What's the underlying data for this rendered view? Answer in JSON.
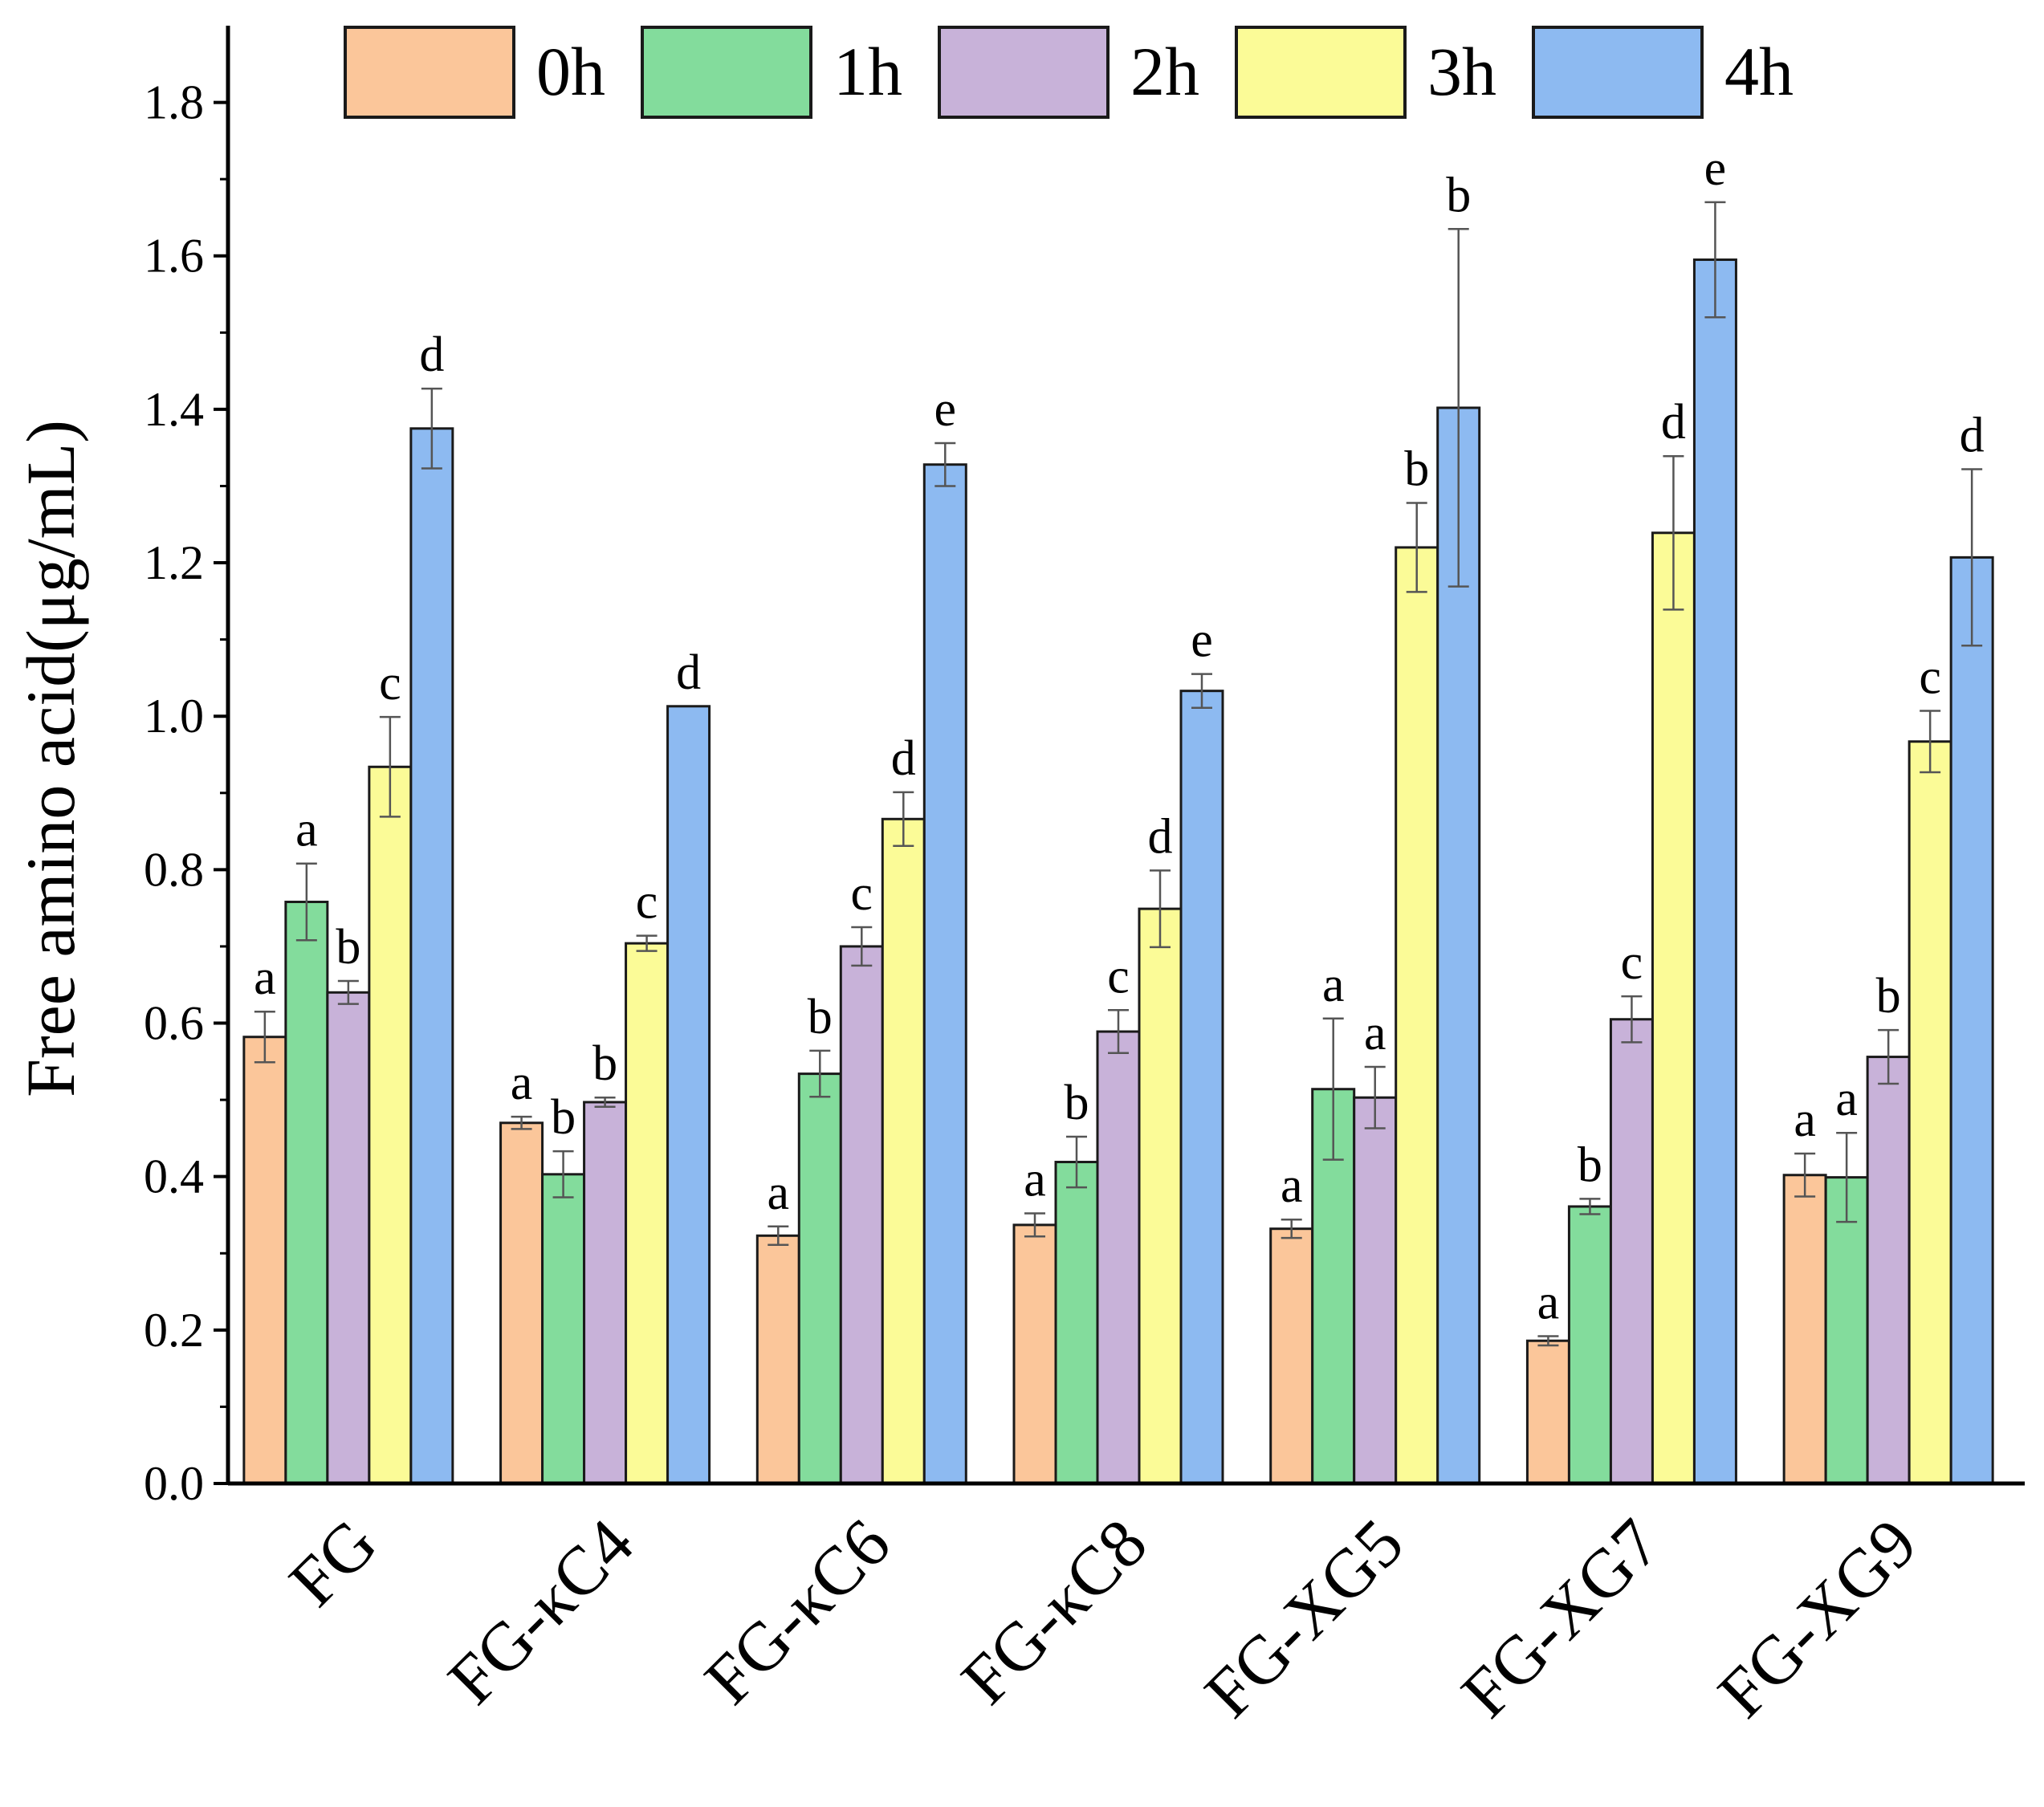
{
  "chart_data": {
    "type": "bar",
    "ylabel": "Free amino acid(μg/mL)",
    "xlabel": "",
    "ylim": [
      0,
      1.9
    ],
    "yticks": [
      "0.0",
      "0.2",
      "0.4",
      "0.6",
      "0.8",
      "1.0",
      "1.2",
      "1.4",
      "1.6",
      "1.8"
    ],
    "categories": [
      "FG",
      "FG-κC4",
      "FG-κC6",
      "FG-κC8",
      "FG-XG5",
      "FG-XG7",
      "FG-XG9"
    ],
    "legend_position": "top",
    "series": [
      {
        "name": "0h",
        "color": "#FBC69A",
        "values": [
          0.582,
          0.47,
          0.323,
          0.337,
          0.332,
          0.186,
          0.402
        ],
        "errors": [
          0.033,
          0.008,
          0.012,
          0.015,
          0.012,
          0.006,
          0.028
        ],
        "letters": [
          "a",
          "a",
          "a",
          "a",
          "a",
          "a",
          "a"
        ]
      },
      {
        "name": "1h",
        "color": "#83DC9C",
        "values": [
          0.758,
          0.403,
          0.534,
          0.419,
          0.514,
          0.361,
          0.399
        ],
        "errors": [
          0.05,
          0.03,
          0.03,
          0.033,
          0.092,
          0.01,
          0.058
        ],
        "letters": [
          "a",
          "b",
          "b",
          "b",
          "a",
          "b",
          "a"
        ]
      },
      {
        "name": "2h",
        "color": "#C8B2D9",
        "values": [
          0.64,
          0.497,
          0.7,
          0.589,
          0.503,
          0.605,
          0.556
        ],
        "errors": [
          0.015,
          0.006,
          0.025,
          0.028,
          0.04,
          0.03,
          0.035
        ],
        "letters": [
          "b",
          "b",
          "c",
          "c",
          "a",
          "c",
          "b"
        ]
      },
      {
        "name": "3h",
        "color": "#FBFB97",
        "values": [
          0.934,
          0.704,
          0.866,
          0.749,
          1.22,
          1.239,
          0.967
        ],
        "errors": [
          0.065,
          0.01,
          0.035,
          0.05,
          0.058,
          0.1,
          0.04
        ],
        "letters": [
          "c",
          "c",
          "d",
          "d",
          "b",
          "d",
          "c"
        ]
      },
      {
        "name": "4h",
        "color": "#8DBAF1",
        "values": [
          1.375,
          1.013,
          1.328,
          1.033,
          1.402,
          1.595,
          1.207
        ],
        "errors": [
          0.052,
          0.0,
          0.028,
          0.022,
          0.233,
          0.075,
          0.115
        ],
        "letters": [
          "d",
          "d",
          "e",
          "e",
          "b",
          "e",
          "d"
        ]
      }
    ]
  }
}
